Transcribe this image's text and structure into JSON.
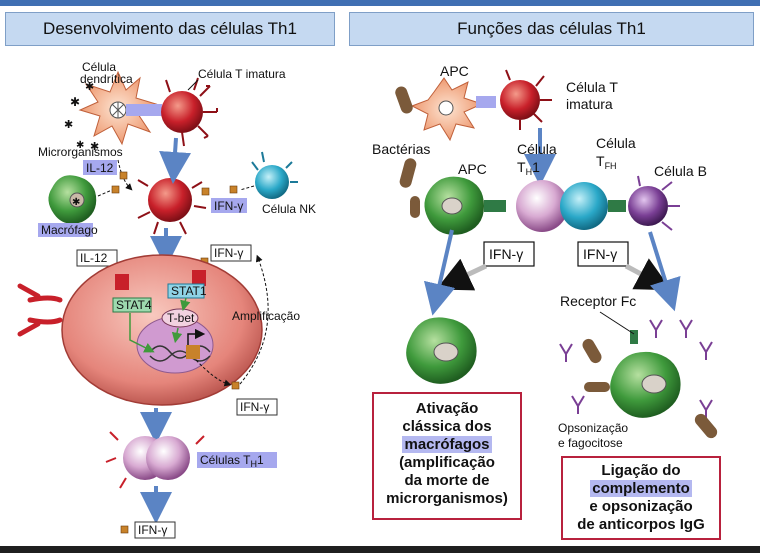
{
  "left_panel": {
    "title": "Desenvolvimento das células Th1",
    "labels": {
      "dendritic_cell": [
        "Célula",
        "dendrítica"
      ],
      "naive_t_cell": "Célula T imatura",
      "microorganisms": "Microrganismos",
      "il12_top": "IL-12",
      "macrophage": "Macrófago",
      "ifng_nk": "IFN-γ",
      "nk_cell": "Célula NK",
      "il12_box": "IL-12",
      "ifng_top": "IFN-γ",
      "stat4": "STAT4",
      "stat1": "STAT1",
      "tbet": "T-bet",
      "amplification": "Amplificação",
      "ifng_mid": "IFN-γ",
      "th1_cells": "Células T",
      "th1_sub": "H",
      "th1_suffix": "1",
      "ifng_bottom": "IFN-γ"
    }
  },
  "right_panel": {
    "title": "Funções das células Th1",
    "labels": {
      "apc_top": "APC",
      "naive_t_cell": [
        "Célula T",
        "imatura"
      ],
      "bacteria": "Bactérias",
      "apc_mid": "APC",
      "th1_cell": [
        "Célula",
        "T",
        "H",
        "1"
      ],
      "tfh_cell": [
        "Célula",
        "T",
        "FH"
      ],
      "b_cell": "Célula B",
      "ifng_left": "IFN-γ",
      "ifng_right": "IFN-γ",
      "fc_receptor": "Receptor Fc",
      "opsonization": [
        "Opsonização",
        "e fagocitose"
      ]
    },
    "result_left": {
      "line1": "Ativação",
      "line2": "clássica dos",
      "line3": "macrófagos",
      "line4": "(amplificação",
      "line5": "da morte de",
      "line6": "microrganismos)"
    },
    "result_right": {
      "line1": "Ligação do",
      "line2": "complemento",
      "line3": "e opsonização",
      "line4": "de anticorpos IgG"
    }
  },
  "colors": {
    "header_bg": "#c5d9f1",
    "label_highlight": "#b4b8f0",
    "result_border": "#b8213d",
    "arrow_blue": "#5b84c4",
    "t_cell_red": "#c8202a",
    "macrophage_green": "#3f9a3c",
    "th1_purple": "#b47fb0",
    "tfh_cyan": "#2aa8c8",
    "b_cell_purple": "#7a3f95"
  }
}
